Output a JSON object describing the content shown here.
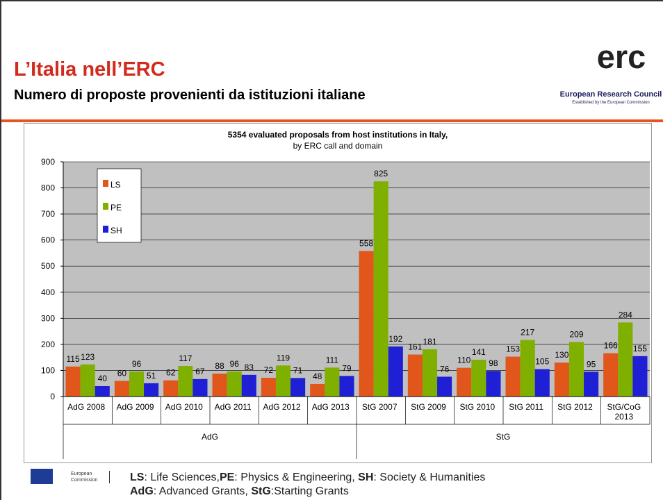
{
  "header": {
    "title": "L’Italia nell’ERC",
    "subtitle": "Numero di proposte provenienti da istituzioni italiane",
    "logo": "erc",
    "logo_caption": "European Research Council",
    "logo_tagline": "Established by the European Commission"
  },
  "chart_data": {
    "type": "bar",
    "title": "5354 evaluated proposals from host institutions in Italy,",
    "subtitle": "by ERC call and domain",
    "groups": [
      {
        "label": "AdG",
        "categories": [
          "AdG 2008",
          "AdG 2009",
          "AdG 2010",
          "AdG 2011",
          "AdG 2012",
          "AdG 2013"
        ]
      },
      {
        "label": "StG",
        "categories": [
          "StG 2007",
          "StG 2009",
          "StG 2010",
          "StG 2011",
          "StG 2012",
          "StG/CoG 2013"
        ]
      }
    ],
    "series": [
      {
        "name": "LS",
        "color": "#e0561b",
        "values": [
          115,
          60,
          62,
          88,
          72,
          48,
          558,
          161,
          110,
          153,
          130,
          166
        ]
      },
      {
        "name": "PE",
        "color": "#7fb000",
        "values": [
          123,
          96,
          117,
          96,
          119,
          111,
          825,
          181,
          141,
          217,
          209,
          284
        ]
      },
      {
        "name": "SH",
        "color": "#1f1fd6",
        "values": [
          40,
          51,
          67,
          83,
          71,
          79,
          192,
          76,
          98,
          105,
          95,
          155
        ]
      }
    ],
    "ylim": [
      0,
      900
    ],
    "yticks": [
      0,
      100,
      200,
      300,
      400,
      500,
      600,
      700,
      800,
      900
    ],
    "grid": true,
    "legend": "upper left"
  },
  "footer": {
    "logo": "European Commission",
    "lines": [
      [
        "LS",
        ": Life Sciences,",
        "PE",
        ": Physics & Engineering, ",
        "SH",
        ": Society & Humanities"
      ],
      [
        "AdG",
        ": Advanced Grants, ",
        "StG",
        ":Starting Grants"
      ]
    ]
  }
}
